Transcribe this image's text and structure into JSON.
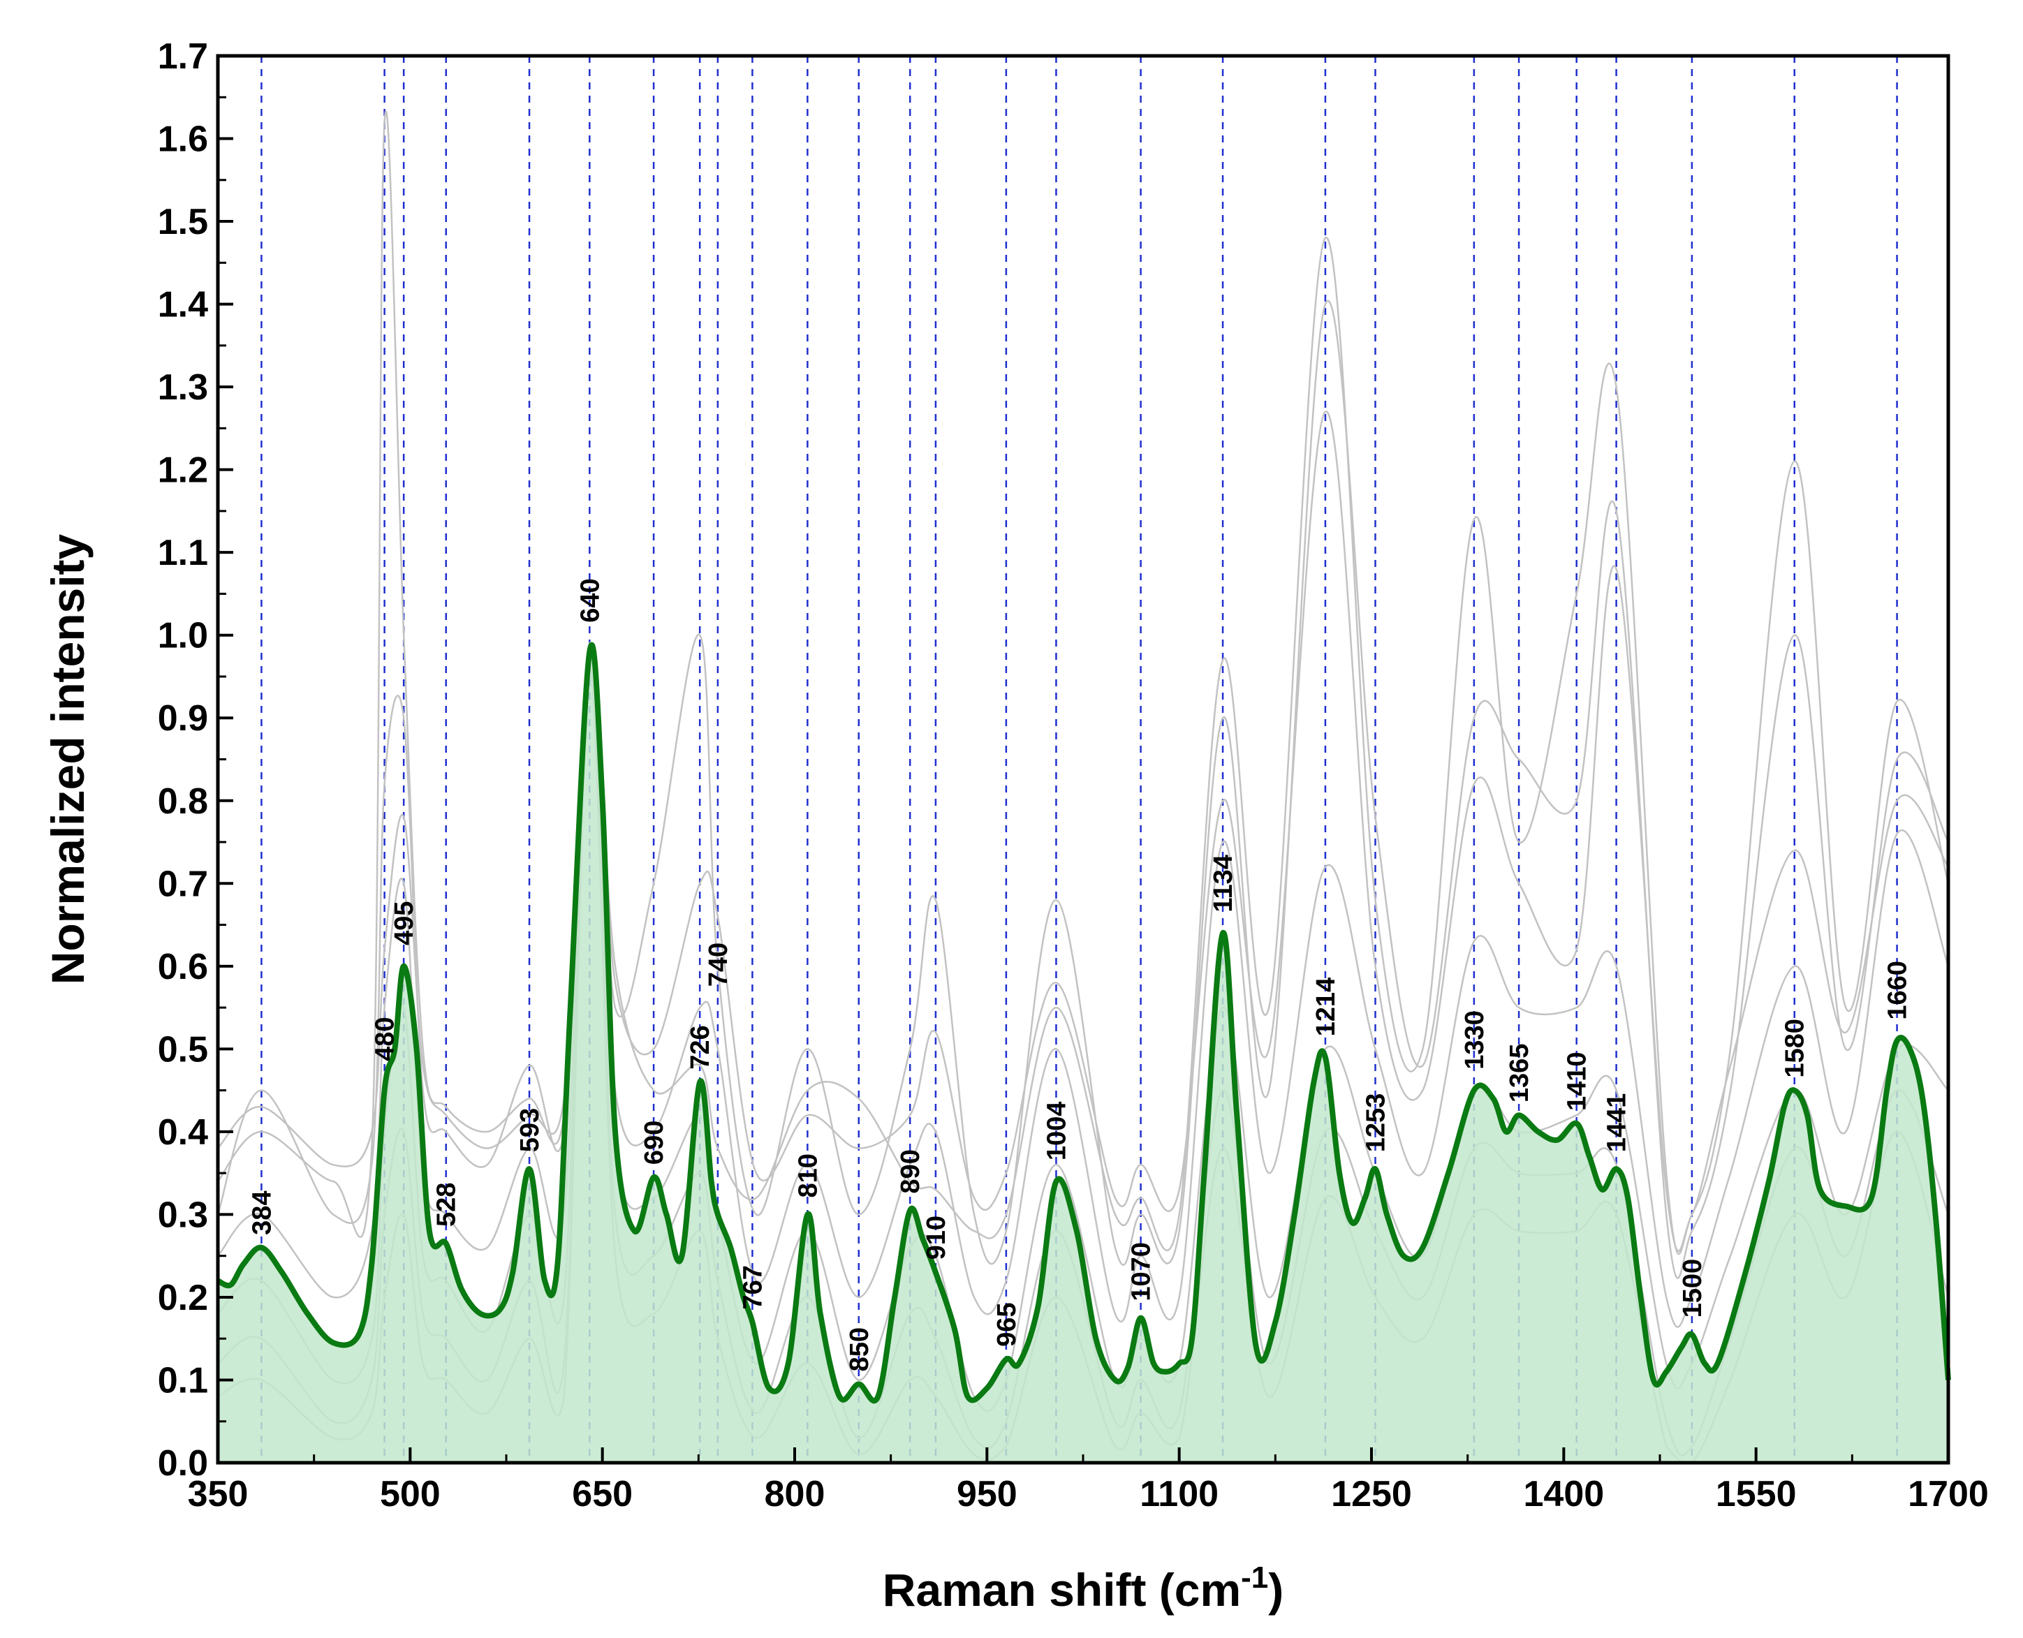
{
  "chart_data": {
    "type": "line",
    "title": "",
    "xlabel": "Raman shift (cm",
    "xlabel_superscript": "-1",
    "xlabel_suffix": ")",
    "ylabel": "Normalized intensity",
    "xlim": [
      350,
      1700
    ],
    "ylim": [
      0.0,
      1.7
    ],
    "x_ticks": [
      "350",
      "500",
      "650",
      "800",
      "950",
      "1100",
      "1250",
      "1400",
      "1550",
      "1700"
    ],
    "y_ticks": [
      "0.0",
      "0.1",
      "0.2",
      "0.3",
      "0.4",
      "0.5",
      "0.6",
      "0.7",
      "0.8",
      "0.9",
      "1.0",
      "1.1",
      "1.2",
      "1.3",
      "1.4",
      "1.5",
      "1.6",
      "1.7"
    ],
    "grid": false,
    "colors": {
      "mean_line": "#0a7a12",
      "fill": "#c3e8cc",
      "individual_lines": "#c2c2c2",
      "reference_lines": "#1f2fcf"
    },
    "peak_labels": [
      {
        "text": "384",
        "x": 384,
        "y": 0.26
      },
      {
        "text": "480",
        "x": 480,
        "y": 0.47
      },
      {
        "text": "495",
        "x": 495,
        "y": 0.61
      },
      {
        "text": "528",
        "x": 528,
        "y": 0.27
      },
      {
        "text": "593",
        "x": 593,
        "y": 0.36
      },
      {
        "text": "640",
        "x": 640,
        "y": 1.0
      },
      {
        "text": "690",
        "x": 690,
        "y": 0.345
      },
      {
        "text": "726",
        "x": 726,
        "y": 0.46
      },
      {
        "text": "740",
        "x": 740,
        "y": 0.56
      },
      {
        "text": "767",
        "x": 767,
        "y": 0.17
      },
      {
        "text": "810",
        "x": 810,
        "y": 0.305
      },
      {
        "text": "850",
        "x": 850,
        "y": 0.095
      },
      {
        "text": "890",
        "x": 890,
        "y": 0.31
      },
      {
        "text": "910",
        "x": 910,
        "y": 0.23
      },
      {
        "text": "965",
        "x": 965,
        "y": 0.125
      },
      {
        "text": "1004",
        "x": 1004,
        "y": 0.35
      },
      {
        "text": "1070",
        "x": 1070,
        "y": 0.18
      },
      {
        "text": "1134",
        "x": 1134,
        "y": 0.65
      },
      {
        "text": "1214",
        "x": 1214,
        "y": 0.5
      },
      {
        "text": "1253",
        "x": 1253,
        "y": 0.36
      },
      {
        "text": "1330",
        "x": 1330,
        "y": 0.46
      },
      {
        "text": "1365",
        "x": 1365,
        "y": 0.42
      },
      {
        "text": "1410",
        "x": 1410,
        "y": 0.41
      },
      {
        "text": "1441",
        "x": 1441,
        "y": 0.36
      },
      {
        "text": "1500",
        "x": 1500,
        "y": 0.16
      },
      {
        "text": "1580",
        "x": 1580,
        "y": 0.45
      },
      {
        "text": "1660",
        "x": 1660,
        "y": 0.52
      }
    ],
    "reference_lines_x": [
      384,
      480,
      495,
      528,
      593,
      640,
      690,
      726,
      740,
      767,
      810,
      850,
      890,
      910,
      965,
      1004,
      1070,
      1134,
      1214,
      1253,
      1330,
      1365,
      1410,
      1441,
      1500,
      1580,
      1660
    ],
    "series": [
      {
        "name": "mean spectrum",
        "role": "mean",
        "x": [
          350,
          360,
          370,
          384,
          400,
          420,
          440,
          460,
          470,
          480,
          488,
          495,
          505,
          515,
          528,
          540,
          555,
          570,
          580,
          593,
          605,
          615,
          625,
          640,
          650,
          660,
          675,
          690,
          700,
          712,
          726,
          735,
          740,
          750,
          760,
          767,
          780,
          795,
          810,
          820,
          835,
          850,
          865,
          878,
          890,
          900,
          910,
          925,
          935,
          950,
          965,
          975,
          990,
          1004,
          1020,
          1035,
          1050,
          1060,
          1070,
          1080,
          1090,
          1100,
          1110,
          1120,
          1134,
          1145,
          1160,
          1175,
          1190,
          1205,
          1214,
          1225,
          1235,
          1245,
          1253,
          1262,
          1275,
          1290,
          1310,
          1330,
          1345,
          1355,
          1365,
          1380,
          1395,
          1410,
          1420,
          1430,
          1441,
          1450,
          1460,
          1470,
          1480,
          1492,
          1500,
          1510,
          1520,
          1540,
          1560,
          1572,
          1580,
          1590,
          1600,
          1620,
          1640,
          1652,
          1660,
          1670,
          1680,
          1690,
          1700
        ],
        "values": [
          0.22,
          0.215,
          0.24,
          0.26,
          0.23,
          0.18,
          0.145,
          0.155,
          0.24,
          0.45,
          0.5,
          0.6,
          0.5,
          0.28,
          0.265,
          0.21,
          0.18,
          0.185,
          0.23,
          0.355,
          0.22,
          0.24,
          0.55,
          0.98,
          0.8,
          0.4,
          0.28,
          0.345,
          0.3,
          0.25,
          0.46,
          0.34,
          0.3,
          0.26,
          0.2,
          0.17,
          0.09,
          0.12,
          0.3,
          0.18,
          0.08,
          0.095,
          0.08,
          0.2,
          0.305,
          0.27,
          0.23,
          0.16,
          0.08,
          0.09,
          0.125,
          0.12,
          0.19,
          0.34,
          0.28,
          0.15,
          0.1,
          0.115,
          0.175,
          0.12,
          0.11,
          0.12,
          0.15,
          0.36,
          0.64,
          0.42,
          0.14,
          0.17,
          0.3,
          0.46,
          0.49,
          0.35,
          0.29,
          0.32,
          0.355,
          0.3,
          0.25,
          0.26,
          0.35,
          0.45,
          0.44,
          0.4,
          0.42,
          0.4,
          0.39,
          0.41,
          0.37,
          0.33,
          0.355,
          0.32,
          0.2,
          0.1,
          0.11,
          0.14,
          0.155,
          0.12,
          0.12,
          0.22,
          0.34,
          0.43,
          0.45,
          0.42,
          0.33,
          0.31,
          0.32,
          0.45,
          0.51,
          0.5,
          0.44,
          0.3,
          0.1
        ]
      },
      {
        "name": "individual spectrum 1",
        "role": "individual",
        "x": [
          350,
          384,
          440,
          470,
          480,
          495,
          510,
          528,
          560,
          593,
          620,
          640,
          660,
          690,
          726,
          740,
          770,
          810,
          850,
          890,
          910,
          940,
          965,
          1004,
          1050,
          1070,
          1100,
          1134,
          1170,
          1214,
          1253,
          1290,
          1330,
          1365,
          1410,
          1441,
          1480,
          1500,
          1530,
          1580,
          1620,
          1660,
          1700
        ],
        "values": [
          0.34,
          0.4,
          0.34,
          0.38,
          1.62,
          1.0,
          0.5,
          0.43,
          0.4,
          0.44,
          0.42,
          0.98,
          0.6,
          0.45,
          0.48,
          0.38,
          0.32,
          0.45,
          0.44,
          0.34,
          0.33,
          0.28,
          0.3,
          0.55,
          0.3,
          0.32,
          0.3,
          0.97,
          0.55,
          1.48,
          0.68,
          0.5,
          1.14,
          0.75,
          1.05,
          1.3,
          0.35,
          0.3,
          0.5,
          1.21,
          0.55,
          0.92,
          0.7
        ]
      },
      {
        "name": "individual spectrum 2",
        "role": "individual",
        "x": [
          350,
          384,
          440,
          470,
          480,
          495,
          510,
          528,
          560,
          593,
          620,
          640,
          660,
          690,
          726,
          740,
          770,
          810,
          850,
          890,
          910,
          940,
          965,
          1004,
          1050,
          1070,
          1100,
          1134,
          1170,
          1214,
          1253,
          1290,
          1330,
          1365,
          1410,
          1441,
          1480,
          1500,
          1530,
          1580,
          1620,
          1660,
          1700
        ],
        "values": [
          0.3,
          0.45,
          0.3,
          0.36,
          0.82,
          0.9,
          0.45,
          0.4,
          0.36,
          0.48,
          0.4,
          0.99,
          0.55,
          0.7,
          1.0,
          0.6,
          0.3,
          0.5,
          0.3,
          0.5,
          0.68,
          0.3,
          0.28,
          0.68,
          0.26,
          0.3,
          0.28,
          0.9,
          0.45,
          1.4,
          0.78,
          0.48,
          0.9,
          0.85,
          0.8,
          1.15,
          0.3,
          0.28,
          0.45,
          1.0,
          0.5,
          0.85,
          0.75
        ]
      },
      {
        "name": "individual spectrum 3",
        "role": "individual",
        "x": [
          350,
          384,
          440,
          470,
          480,
          495,
          510,
          528,
          560,
          593,
          620,
          640,
          660,
          690,
          726,
          740,
          770,
          810,
          850,
          890,
          910,
          940,
          965,
          1004,
          1050,
          1070,
          1100,
          1134,
          1170,
          1214,
          1253,
          1290,
          1330,
          1365,
          1410,
          1441,
          1480,
          1500,
          1530,
          1580,
          1620,
          1660,
          1700
        ],
        "values": [
          0.38,
          0.43,
          0.36,
          0.4,
          0.62,
          0.78,
          0.48,
          0.42,
          0.38,
          0.42,
          0.44,
          0.95,
          0.58,
          0.5,
          0.7,
          0.66,
          0.35,
          0.42,
          0.38,
          0.42,
          0.52,
          0.32,
          0.35,
          0.58,
          0.32,
          0.36,
          0.33,
          0.8,
          0.5,
          1.27,
          0.6,
          0.45,
          0.82,
          0.7,
          0.62,
          1.08,
          0.33,
          0.3,
          0.48,
          0.74,
          0.52,
          0.8,
          0.72
        ]
      },
      {
        "name": "individual spectrum 4",
        "role": "individual",
        "x": [
          350,
          384,
          440,
          470,
          480,
          495,
          510,
          528,
          560,
          593,
          620,
          640,
          660,
          690,
          726,
          740,
          770,
          810,
          850,
          890,
          910,
          940,
          965,
          1004,
          1050,
          1070,
          1100,
          1134,
          1170,
          1214,
          1253,
          1290,
          1330,
          1365,
          1410,
          1441,
          1480,
          1500,
          1530,
          1580,
          1620,
          1660,
          1700
        ],
        "values": [
          0.25,
          0.3,
          0.2,
          0.28,
          0.55,
          0.7,
          0.35,
          0.3,
          0.26,
          0.38,
          0.3,
          0.96,
          0.45,
          0.4,
          0.55,
          0.5,
          0.22,
          0.36,
          0.2,
          0.36,
          0.4,
          0.2,
          0.22,
          0.5,
          0.18,
          0.25,
          0.2,
          0.75,
          0.35,
          0.72,
          0.5,
          0.35,
          0.63,
          0.55,
          0.55,
          0.6,
          0.2,
          0.2,
          0.35,
          0.6,
          0.4,
          0.76,
          0.6
        ]
      },
      {
        "name": "individual spectrum 5",
        "role": "individual",
        "x": [
          350,
          384,
          440,
          470,
          480,
          495,
          510,
          528,
          560,
          593,
          620,
          640,
          660,
          690,
          726,
          740,
          770,
          810,
          850,
          890,
          910,
          940,
          965,
          1004,
          1050,
          1070,
          1100,
          1134,
          1170,
          1214,
          1253,
          1290,
          1330,
          1365,
          1410,
          1441,
          1480,
          1500,
          1530,
          1580,
          1620,
          1660,
          1700
        ],
        "values": [
          0.18,
          0.22,
          0.1,
          0.15,
          0.4,
          0.55,
          0.25,
          0.22,
          0.16,
          0.3,
          0.2,
          0.97,
          0.38,
          0.32,
          0.42,
          0.3,
          0.12,
          0.28,
          0.1,
          0.26,
          0.25,
          0.08,
          0.1,
          0.36,
          0.1,
          0.15,
          0.12,
          0.55,
          0.2,
          0.5,
          0.35,
          0.25,
          0.45,
          0.4,
          0.42,
          0.45,
          0.12,
          0.12,
          0.25,
          0.45,
          0.3,
          0.5,
          0.45
        ]
      },
      {
        "name": "individual spectrum 6",
        "role": "individual",
        "x": [
          350,
          384,
          440,
          470,
          480,
          495,
          510,
          528,
          560,
          593,
          620,
          640,
          660,
          690,
          726,
          740,
          770,
          810,
          850,
          890,
          910,
          940,
          965,
          1004,
          1050,
          1070,
          1100,
          1134,
          1170,
          1214,
          1253,
          1290,
          1330,
          1365,
          1410,
          1441,
          1480,
          1500,
          1530,
          1580,
          1620,
          1660,
          1700
        ],
        "values": [
          0.12,
          0.15,
          0.05,
          0.1,
          0.3,
          0.4,
          0.18,
          0.15,
          0.1,
          0.22,
          0.12,
          0.96,
          0.3,
          0.25,
          0.35,
          0.22,
          0.06,
          0.2,
          0.03,
          0.18,
          0.15,
          0.03,
          0.05,
          0.28,
          0.05,
          0.1,
          0.06,
          0.45,
          0.12,
          0.4,
          0.28,
          0.2,
          0.38,
          0.35,
          0.35,
          0.36,
          0.05,
          0.02,
          0.15,
          0.38,
          0.25,
          0.45,
          0.3
        ]
      },
      {
        "name": "individual spectrum 7",
        "role": "individual",
        "x": [
          350,
          384,
          440,
          470,
          480,
          495,
          510,
          528,
          560,
          593,
          620,
          640,
          660,
          690,
          726,
          740,
          770,
          810,
          850,
          890,
          910,
          940,
          965,
          1004,
          1050,
          1070,
          1100,
          1134,
          1170,
          1214,
          1253,
          1290,
          1330,
          1365,
          1410,
          1441,
          1480,
          1500,
          1530,
          1580,
          1620,
          1660,
          1700
        ],
        "values": [
          0.08,
          0.1,
          0.03,
          0.06,
          0.2,
          0.3,
          0.12,
          0.1,
          0.06,
          0.15,
          0.08,
          0.95,
          0.25,
          0.18,
          0.28,
          0.15,
          0.03,
          0.12,
          0.01,
          0.1,
          0.08,
          0.01,
          0.02,
          0.2,
          0.02,
          0.06,
          0.03,
          0.38,
          0.08,
          0.32,
          0.2,
          0.15,
          0.3,
          0.28,
          0.28,
          0.3,
          0.02,
          0.0,
          0.1,
          0.3,
          0.2,
          0.4,
          0.2
        ]
      }
    ]
  }
}
